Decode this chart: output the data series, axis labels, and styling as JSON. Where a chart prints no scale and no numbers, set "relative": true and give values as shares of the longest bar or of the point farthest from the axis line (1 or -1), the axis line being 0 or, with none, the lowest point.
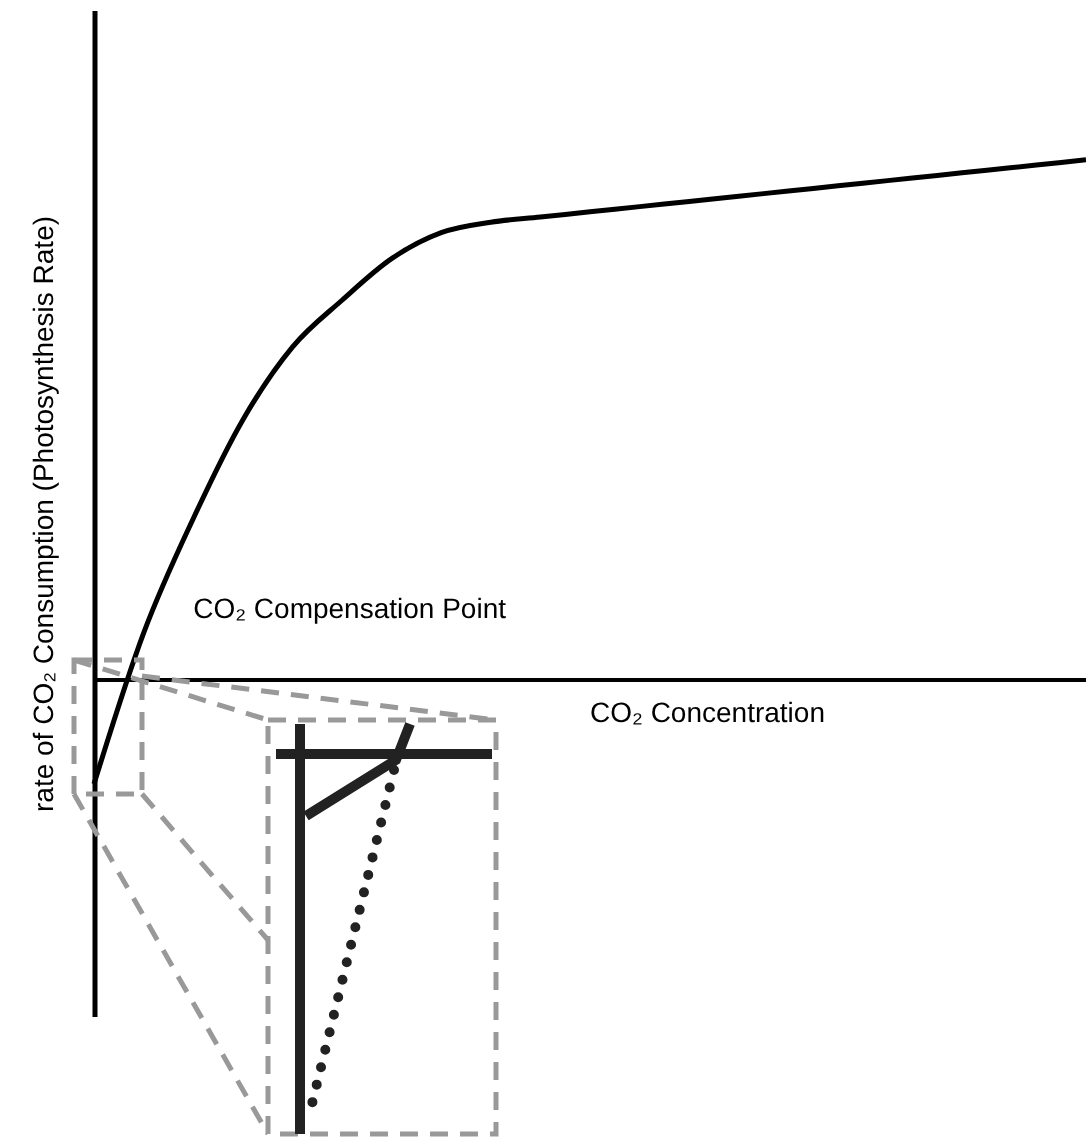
{
  "chart_data": {
    "type": "line",
    "relative": true,
    "ylabel": "rate of CO₂ Consumption (Photosynthesis Rate)",
    "xlabel": "CO₂ Concentration",
    "annotations": [
      "CO₂ Compensation Point"
    ],
    "categories": [
      null,
      null,
      null,
      null,
      null,
      null,
      null,
      null,
      null,
      null,
      null,
      null,
      null,
      null,
      null,
      null,
      null,
      null,
      null,
      null,
      null
    ],
    "series": [
      {
        "color": "#000000",
        "values": [
          -0.2,
          0.09,
          0.31,
          0.5,
          0.64,
          0.73,
          0.81,
          0.86,
          0.88,
          0.89,
          0.9,
          0.91,
          0.92,
          0.93,
          0.94,
          0.95,
          0.96,
          0.97,
          0.98,
          0.99,
          1
        ]
      }
    ],
    "grid": false,
    "marker": "none",
    "line_style": "solid"
  }
}
